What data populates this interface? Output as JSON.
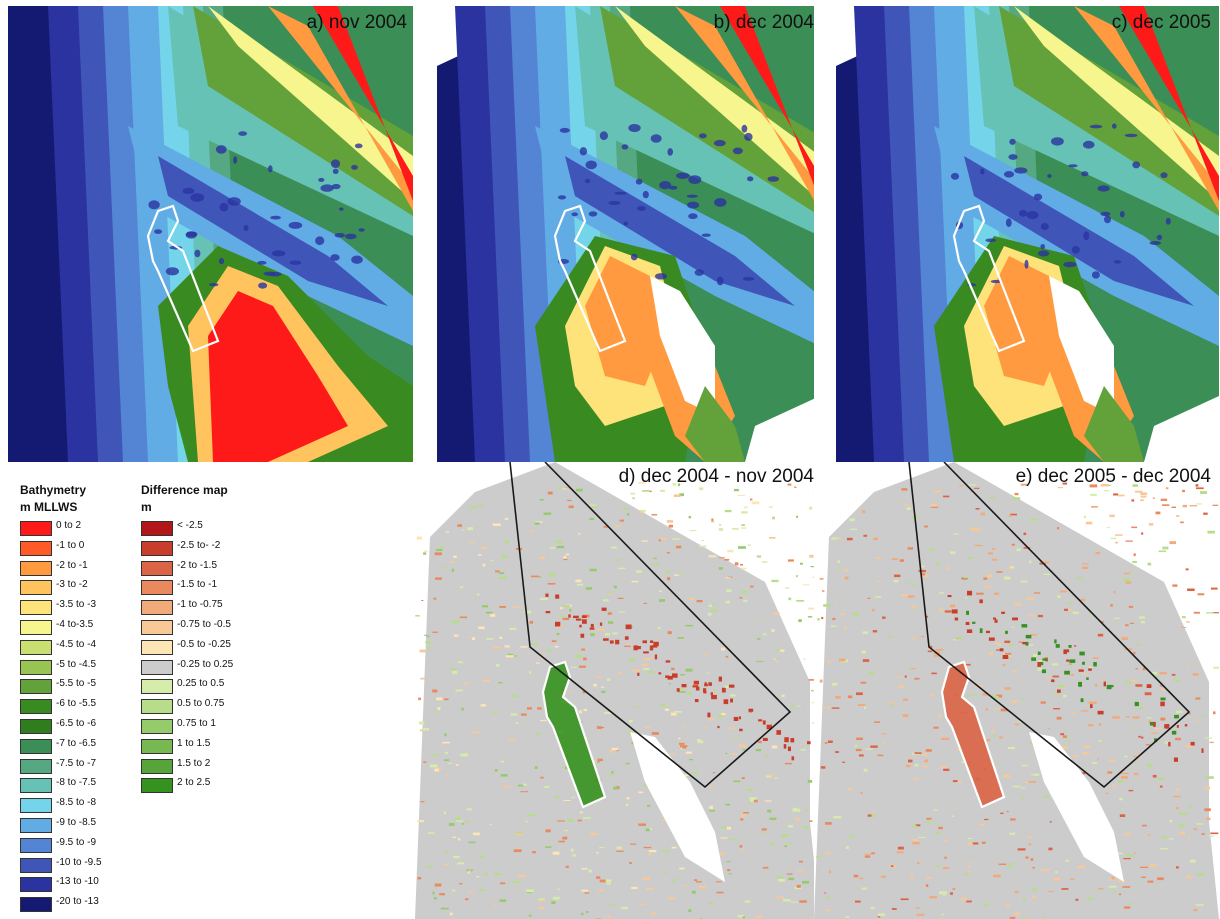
{
  "panels": [
    {
      "id": "a",
      "title": "a) nov 2004",
      "kind": "bathymetry",
      "variant": "a"
    },
    {
      "id": "b",
      "title": "b) dec 2004",
      "kind": "bathymetry",
      "variant": "b"
    },
    {
      "id": "c",
      "title": "c) dec 2005",
      "kind": "bathymetry",
      "variant": "c"
    },
    {
      "id": "d",
      "title": "d) dec 2004 - nov 2004",
      "kind": "difference",
      "variant": "d"
    },
    {
      "id": "e",
      "title": "e) dec 2005 - dec 2004",
      "kind": "difference",
      "variant": "e"
    }
  ],
  "legend": {
    "bathymetry": {
      "title": "Bathymetry",
      "unit": "m MLLWS",
      "items": [
        {
          "label": "0 to 2",
          "color": "#ff1a1a"
        },
        {
          "label": "-1 to 0",
          "color": "#ff5a28"
        },
        {
          "label": "-2 to -1",
          "color": "#ff9a40"
        },
        {
          "label": "-3 to -2",
          "color": "#ffc45e"
        },
        {
          "label": "-3.5 to -3",
          "color": "#fee27a"
        },
        {
          "label": "-4 to-3.5",
          "color": "#f7f58e"
        },
        {
          "label": "-4.5 to -4",
          "color": "#c9e070"
        },
        {
          "label": "-5 to -4.5",
          "color": "#97c452"
        },
        {
          "label": "-5.5 to -5",
          "color": "#63a23a"
        },
        {
          "label": "-6 to -5.5",
          "color": "#3a8a22"
        },
        {
          "label": "-6.5 to -6",
          "color": "#2f7d1d"
        },
        {
          "label": "-7 to -6.5",
          "color": "#3b8e55"
        },
        {
          "label": "-7.5 to -7",
          "color": "#55a882"
        },
        {
          "label": "-8 to -7.5",
          "color": "#66c2b5"
        },
        {
          "label": "-8.5 to -8",
          "color": "#74d4ea"
        },
        {
          "label": "-9 to -8.5",
          "color": "#62ace6"
        },
        {
          "label": "-9.5 to -9",
          "color": "#5484d4"
        },
        {
          "label": "-10 to -9.5",
          "color": "#3f56b8"
        },
        {
          "label": "-13 to -10",
          "color": "#2a33a0"
        },
        {
          "label": "-20 to -13",
          "color": "#141a72"
        }
      ]
    },
    "difference": {
      "title": "Difference map",
      "unit": "m",
      "items": [
        {
          "label": "< -2.5",
          "color": "#b2161a"
        },
        {
          "label": "-2.5 to- -2",
          "color": "#c93e2b"
        },
        {
          "label": "-2 to -1.5",
          "color": "#dc6446"
        },
        {
          "label": "-1.5 to -1",
          "color": "#e9895d"
        },
        {
          "label": "-1 to -0.75",
          "color": "#f2aa7a"
        },
        {
          "label": "-0.75 to -0.5",
          "color": "#f8c997"
        },
        {
          "label": "-0.5 to -0.25",
          "color": "#fde5b5"
        },
        {
          "label": "-0.25 to 0.25",
          "color": "#cccccc"
        },
        {
          "label": "0.25 to 0.5",
          "color": "#d6ecaa"
        },
        {
          "label": "0.5 to 0.75",
          "color": "#b7dc8a"
        },
        {
          "label": "0.75 to 1",
          "color": "#96cb6c"
        },
        {
          "label": "1 to 1.5",
          "color": "#77b852"
        },
        {
          "label": "1.5 to 2",
          "color": "#56a43a"
        },
        {
          "label": "2 to 2.5",
          "color": "#36921f"
        }
      ]
    }
  }
}
